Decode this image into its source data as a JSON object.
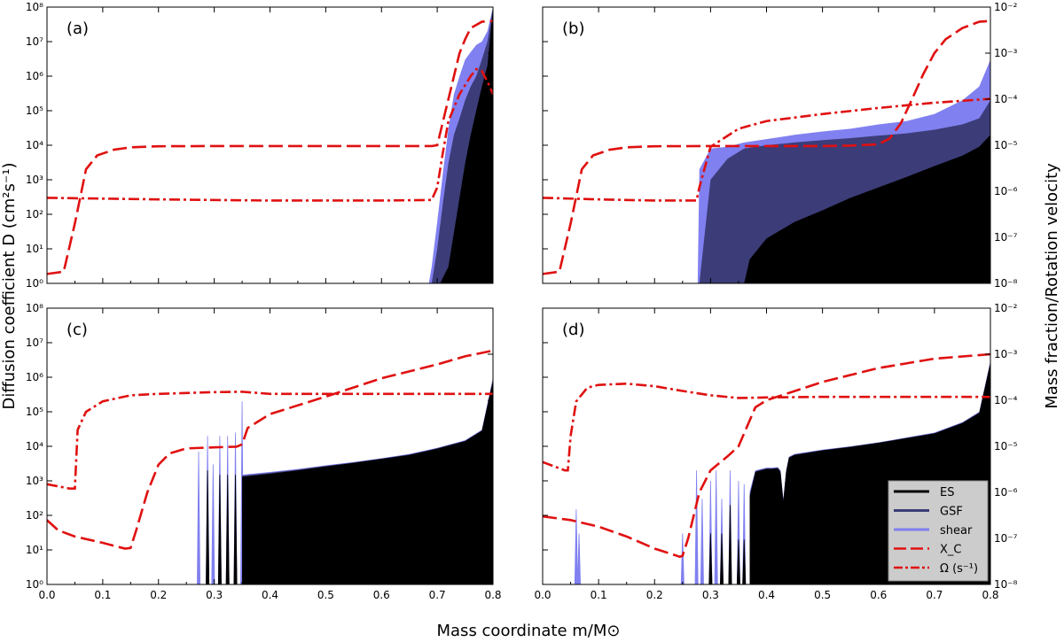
{
  "figure": {
    "xlabel": "Mass coordinate m/M⊙",
    "ylabel_left": "Diffusion coefficient D (cm²s⁻¹)",
    "ylabel_right": "Mass fraction/Rotation velocity"
  },
  "colors": {
    "es": "#000000",
    "gsf": "#3c3c78",
    "shear": "#8080f0",
    "xc": "#e01010",
    "omega": "#e01010"
  },
  "legend": {
    "entries": [
      {
        "key": "es",
        "label": "ES",
        "style": "solid-black"
      },
      {
        "key": "gsf",
        "label": "GSF",
        "style": "solid-navy"
      },
      {
        "key": "shear",
        "label": "shear",
        "style": "solid-lightblue"
      },
      {
        "key": "xc",
        "label": "X_C",
        "style": "dashed-red"
      },
      {
        "key": "omega",
        "label": "Ω (s⁻¹)",
        "style": "dashdot-red"
      }
    ]
  },
  "chart_data": [
    {
      "panel": "(a)",
      "type": "area",
      "xlim": [
        0.0,
        0.8
      ],
      "ylim_left": [
        1,
        100000000
      ],
      "ylim_right": [
        1e-08,
        0.01
      ],
      "xticks": [
        "0.0",
        "0.1",
        "0.2",
        "0.3",
        "0.4",
        "0.5",
        "0.6",
        "0.7",
        "0.8"
      ],
      "yticks_left": [
        "10⁰",
        "10¹",
        "10²",
        "10³",
        "10⁴",
        "10⁵",
        "10⁶",
        "10⁷",
        "10⁸"
      ],
      "yticks_right": [
        "10⁻⁸",
        "10⁻⁷",
        "10⁻⁶",
        "10⁻⁵",
        "10⁻⁴",
        "10⁻³",
        "10⁻²"
      ],
      "series": [
        {
          "key": "shear",
          "x": [
            0.685,
            0.69,
            0.7,
            0.71,
            0.72,
            0.73,
            0.74,
            0.75,
            0.76,
            0.77,
            0.78,
            0.79,
            0.8
          ],
          "y": [
            1,
            3,
            60,
            1500,
            30000,
            300000,
            1000000,
            3000000,
            5000000,
            8000000,
            10000000,
            20000000,
            100000000
          ]
        },
        {
          "key": "gsf",
          "x": [
            0.69,
            0.7,
            0.71,
            0.72,
            0.73,
            0.74,
            0.75,
            0.76,
            0.77,
            0.78,
            0.79,
            0.8
          ],
          "y": [
            1,
            10,
            200,
            3000,
            20000,
            60000,
            200000,
            500000,
            1000000,
            3000000,
            10000000,
            100000000
          ]
        },
        {
          "key": "es",
          "x": [
            0.705,
            0.72,
            0.73,
            0.74,
            0.75,
            0.76,
            0.77,
            0.78,
            0.79,
            0.8
          ],
          "y": [
            1,
            3,
            30,
            300,
            3000,
            20000,
            100000,
            500000,
            2000000,
            100000000
          ]
        },
        {
          "key": "xc",
          "x": [
            0.0,
            0.03,
            0.05,
            0.07,
            0.09,
            0.12,
            0.15,
            0.2,
            0.3,
            0.5,
            0.69,
            0.7,
            0.72,
            0.74,
            0.75,
            0.76,
            0.78,
            0.8
          ],
          "y": [
            1.6e-08,
            1.8e-08,
            2e-07,
            3e-06,
            6e-06,
            8e-06,
            9e-06,
            9.5e-06,
            9.6e-06,
            9.6e-06,
            9.6e-06,
            1e-05,
            0.0001,
            0.001,
            0.002,
            0.0035,
            0.0048,
            0.005
          ]
        },
        {
          "key": "omega",
          "x": [
            0.0,
            0.2,
            0.4,
            0.6,
            0.69,
            0.7,
            0.71,
            0.72,
            0.74,
            0.76,
            0.77,
            0.78,
            0.79,
            0.8
          ],
          "y": [
            300,
            270,
            250,
            250,
            260,
            600,
            6000,
            50000,
            300000,
            1000000,
            1600000,
            1400000,
            700000,
            300000
          ]
        }
      ]
    },
    {
      "panel": "(b)",
      "type": "area",
      "xlim": [
        0.0,
        0.8
      ],
      "ylim_left": [
        1,
        100000000
      ],
      "ylim_right": [
        1e-08,
        0.01
      ],
      "xticks": [
        "0.0",
        "0.1",
        "0.2",
        "0.3",
        "0.4",
        "0.5",
        "0.6",
        "0.7",
        "0.8"
      ],
      "yticks_left": [
        "10⁰",
        "10¹",
        "10²",
        "10³",
        "10⁴",
        "10⁵",
        "10⁶",
        "10⁷",
        "10⁸"
      ],
      "yticks_right": [
        "10⁻⁸",
        "10⁻⁷",
        "10⁻⁶",
        "10⁻⁵",
        "10⁻⁴",
        "10⁻³",
        "10⁻²"
      ],
      "series": [
        {
          "key": "shear",
          "x": [
            0.277,
            0.28,
            0.3,
            0.33,
            0.36,
            0.4,
            0.45,
            0.5,
            0.55,
            0.6,
            0.65,
            0.7,
            0.75,
            0.78,
            0.8
          ],
          "y": [
            1,
            2000,
            8000,
            9000,
            12000,
            15000,
            20000,
            25000,
            30000,
            40000,
            50000,
            80000,
            200000,
            500000,
            3000000
          ]
        },
        {
          "key": "gsf",
          "x": [
            0.28,
            0.3,
            0.33,
            0.36,
            0.4,
            0.45,
            0.5,
            0.55,
            0.6,
            0.65,
            0.7,
            0.75,
            0.78,
            0.8
          ],
          "y": [
            1,
            1000,
            4000,
            8000,
            10000,
            12000,
            14000,
            16000,
            19000,
            22000,
            28000,
            40000,
            60000,
            200000
          ]
        },
        {
          "key": "es",
          "x": [
            0.36,
            0.37,
            0.4,
            0.45,
            0.5,
            0.55,
            0.6,
            0.65,
            0.7,
            0.75,
            0.78,
            0.8
          ],
          "y": [
            1,
            5,
            20,
            60,
            130,
            300,
            600,
            1200,
            2500,
            5000,
            9000,
            20000
          ]
        },
        {
          "key": "xc",
          "x": [
            0.0,
            0.03,
            0.05,
            0.07,
            0.09,
            0.12,
            0.15,
            0.2,
            0.3,
            0.4,
            0.5,
            0.55,
            0.6,
            0.62,
            0.64,
            0.66,
            0.68,
            0.7,
            0.72,
            0.75,
            0.78,
            0.8
          ],
          "y": [
            1.6e-08,
            1.8e-08,
            2e-07,
            3e-06,
            6e-06,
            8e-06,
            9e-06,
            9.5e-06,
            9.6e-06,
            9.6e-06,
            9.6e-06,
            9.8e-06,
            1.05e-05,
            1.4e-05,
            3e-05,
            0.0001,
            0.00035,
            0.001,
            0.002,
            0.0035,
            0.0048,
            0.005
          ]
        },
        {
          "key": "omega",
          "x": [
            0.0,
            0.1,
            0.2,
            0.27,
            0.275,
            0.28,
            0.3,
            0.35,
            0.4,
            0.5,
            0.6,
            0.7,
            0.8
          ],
          "y": [
            300,
            270,
            250,
            250,
            250,
            600,
            9000,
            30000,
            50000,
            80000,
            120000,
            170000,
            220000
          ]
        }
      ]
    },
    {
      "panel": "(c)",
      "type": "area",
      "xlim": [
        0.0,
        0.8
      ],
      "ylim_left": [
        1,
        100000000
      ],
      "ylim_right": [
        1e-08,
        0.01
      ],
      "xticks": [
        "0.0",
        "0.1",
        "0.2",
        "0.3",
        "0.4",
        "0.5",
        "0.6",
        "0.7",
        "0.8"
      ],
      "yticks_left": [
        "10⁰",
        "10¹",
        "10²",
        "10³",
        "10⁴",
        "10⁵",
        "10⁶",
        "10⁷",
        "10⁸"
      ],
      "yticks_right": [
        "10⁻⁸",
        "10⁻⁷",
        "10⁻⁶",
        "10⁻⁵",
        "10⁻⁴",
        "10⁻³",
        "10⁻²"
      ],
      "series": [
        {
          "key": "shear",
          "x": [
            0.35,
            0.4,
            0.45,
            0.5,
            0.55,
            0.6,
            0.65,
            0.7,
            0.75,
            0.78,
            0.8
          ],
          "y": [
            1500,
            1800,
            2200,
            2800,
            3500,
            4500,
            6000,
            9000,
            15000,
            30000,
            1000000
          ],
          "spikes": [
            {
              "x": 0.272,
              "y": 7000
            },
            {
              "x": 0.288,
              "y": 20000
            },
            {
              "x": 0.298,
              "y": 3000
            },
            {
              "x": 0.31,
              "y": 20000
            },
            {
              "x": 0.324,
              "y": 20000
            },
            {
              "x": 0.338,
              "y": 25000
            },
            {
              "x": 0.35,
              "y": 200000
            }
          ]
        },
        {
          "key": "gsf",
          "x": [
            0.35,
            0.4,
            0.45,
            0.5,
            0.55,
            0.6,
            0.65,
            0.7,
            0.75,
            0.78,
            0.8
          ],
          "y": [
            1400,
            1700,
            2100,
            2700,
            3400,
            4400,
            5800,
            8800,
            14500,
            29000,
            900000
          ]
        },
        {
          "key": "es",
          "x": [
            0.35,
            0.4,
            0.45,
            0.5,
            0.55,
            0.6,
            0.65,
            0.7,
            0.75,
            0.78,
            0.8
          ],
          "y": [
            1300,
            1600,
            2000,
            2600,
            3300,
            4300,
            5600,
            8500,
            14000,
            28000,
            800000
          ],
          "spikes": [
            {
              "x": 0.288,
              "y": 2000
            },
            {
              "x": 0.31,
              "y": 1500
            },
            {
              "x": 0.324,
              "y": 1500
            },
            {
              "x": 0.338,
              "y": 1500
            }
          ]
        },
        {
          "key": "xc",
          "x": [
            0.0,
            0.02,
            0.05,
            0.1,
            0.14,
            0.15,
            0.16,
            0.18,
            0.2,
            0.22,
            0.25,
            0.3,
            0.34,
            0.35,
            0.36,
            0.4,
            0.5,
            0.6,
            0.7,
            0.75,
            0.8
          ],
          "y": [
            2.5e-07,
            1.5e-07,
            1.1e-07,
            8e-08,
            6e-08,
            6.2e-08,
            1.5e-07,
            1e-06,
            4e-06,
            7e-06,
            9e-06,
            9.5e-06,
            9.8e-06,
            1.1e-05,
            2.5e-05,
            5e-05,
            0.00012,
            0.0003,
            0.0006,
            0.0009,
            0.0012
          ]
        },
        {
          "key": "omega",
          "x": [
            0.0,
            0.04,
            0.05,
            0.055,
            0.07,
            0.1,
            0.15,
            0.2,
            0.3,
            0.35,
            0.4,
            0.5,
            0.6,
            0.7,
            0.8
          ],
          "y": [
            800,
            600,
            600,
            30000,
            100000,
            200000,
            300000,
            330000,
            370000,
            380000,
            330000,
            330000,
            330000,
            330000,
            330000
          ]
        }
      ]
    },
    {
      "panel": "(d)",
      "type": "area",
      "xlim": [
        0.0,
        0.8
      ],
      "ylim_left": [
        1,
        100000000
      ],
      "ylim_right": [
        1e-08,
        0.01
      ],
      "xticks": [
        "0.0",
        "0.1",
        "0.2",
        "0.3",
        "0.4",
        "0.5",
        "0.6",
        "0.7",
        "0.8"
      ],
      "yticks_left": [
        "10⁰",
        "10¹",
        "10²",
        "10³",
        "10⁴",
        "10⁵",
        "10⁶",
        "10⁷",
        "10⁸"
      ],
      "yticks_right": [
        "10⁻⁸",
        "10⁻⁷",
        "10⁻⁶",
        "10⁻⁵",
        "10⁻⁴",
        "10⁻³",
        "10⁻²"
      ],
      "series": [
        {
          "key": "shear",
          "x": [
            0.37,
            0.38,
            0.39,
            0.4,
            0.41,
            0.42,
            0.425,
            0.43,
            0.435,
            0.44,
            0.45,
            0.5,
            0.55,
            0.6,
            0.65,
            0.7,
            0.75,
            0.78,
            0.8
          ],
          "y": [
            500,
            2000,
            2200,
            2400,
            2400,
            2500,
            2000,
            300,
            2000,
            5000,
            6000,
            8000,
            10000,
            13000,
            18000,
            25000,
            50000,
            100000,
            3000000
          ],
          "spikes": [
            {
              "x": 0.06,
              "y": 150
            },
            {
              "x": 0.065,
              "y": 30
            },
            {
              "x": 0.25,
              "y": 30
            },
            {
              "x": 0.275,
              "y": 2000
            },
            {
              "x": 0.285,
              "y": 300
            },
            {
              "x": 0.3,
              "y": 1000
            },
            {
              "x": 0.31,
              "y": 2000
            },
            {
              "x": 0.32,
              "y": 300
            },
            {
              "x": 0.335,
              "y": 2000
            },
            {
              "x": 0.35,
              "y": 1000
            },
            {
              "x": 0.36,
              "y": 800
            }
          ]
        },
        {
          "key": "gsf",
          "x": [
            0.37,
            0.38,
            0.39,
            0.4,
            0.41,
            0.42,
            0.425,
            0.43,
            0.435,
            0.44,
            0.45,
            0.5,
            0.55,
            0.6,
            0.65,
            0.7,
            0.75,
            0.78,
            0.8
          ],
          "y": [
            400,
            1900,
            2100,
            2300,
            2300,
            2400,
            1900,
            280,
            1900,
            4800,
            5800,
            7800,
            9800,
            12800,
            17500,
            24000,
            48000,
            95000,
            2800000
          ]
        },
        {
          "key": "es",
          "x": [
            0.37,
            0.38,
            0.39,
            0.4,
            0.41,
            0.42,
            0.425,
            0.43,
            0.435,
            0.44,
            0.45,
            0.5,
            0.55,
            0.6,
            0.65,
            0.7,
            0.75,
            0.78,
            0.8
          ],
          "y": [
            350,
            1800,
            2000,
            2200,
            2200,
            2300,
            1800,
            260,
            1800,
            4600,
            5600,
            7600,
            9600,
            12600,
            17200,
            23500,
            47000,
            93000,
            2600000
          ],
          "spikes": [
            {
              "x": 0.3,
              "y": 30
            },
            {
              "x": 0.32,
              "y": 30
            },
            {
              "x": 0.335,
              "y": 200
            },
            {
              "x": 0.35,
              "y": 20
            },
            {
              "x": 0.36,
              "y": 20
            }
          ]
        },
        {
          "key": "xc",
          "x": [
            0.0,
            0.05,
            0.1,
            0.15,
            0.2,
            0.245,
            0.25,
            0.26,
            0.28,
            0.3,
            0.33,
            0.35,
            0.38,
            0.4,
            0.5,
            0.6,
            0.7,
            0.8
          ],
          "y": [
            3e-07,
            2.5e-07,
            1.8e-07,
            1.1e-07,
            6e-08,
            4e-08,
            4.2e-08,
            1e-07,
            1e-06,
            3e-06,
            6e-06,
            1e-05,
            7e-05,
            0.0001,
            0.00025,
            0.0005,
            0.0008,
            0.001
          ]
        },
        {
          "key": "omega",
          "x": [
            0.0,
            0.04,
            0.045,
            0.05,
            0.06,
            0.08,
            0.1,
            0.15,
            0.2,
            0.25,
            0.3,
            0.35,
            0.4,
            0.5,
            0.6,
            0.7,
            0.8
          ],
          "y": [
            3500,
            2000,
            2000,
            20000,
            200000,
            500000,
            600000,
            650000,
            550000,
            400000,
            300000,
            250000,
            260000,
            270000,
            270000,
            270000,
            270000
          ]
        }
      ]
    }
  ]
}
